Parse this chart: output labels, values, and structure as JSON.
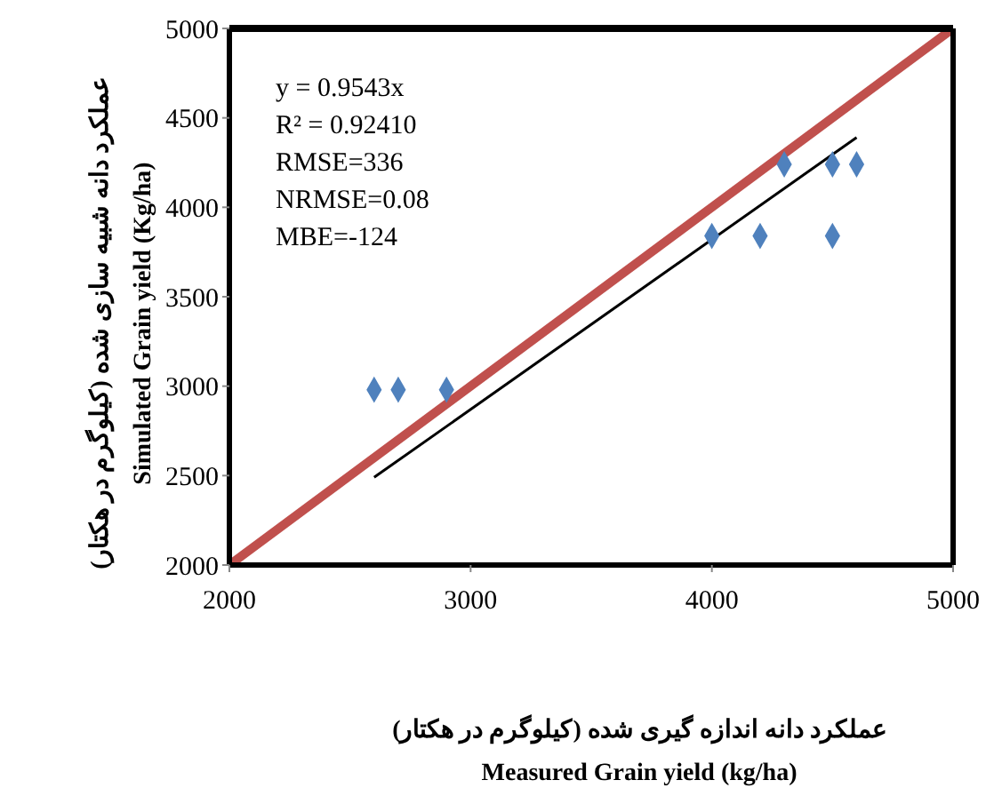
{
  "chart_data": {
    "type": "scatter",
    "xlabel": "عملکرد دانه  اندازه گیری شده (کیلوگرم در هکتار)\nMeasured Grain yield (kg/ha)",
    "ylabel": "عملکرد دانه شبیه سازی شده (کیلوگرم در هکتار)\nSimulated Grain  yield  (Kg/ha)",
    "annotations": [
      "y = 0.9543x",
      "R² = 0.92410",
      "RMSE=336",
      "NRMSE=0.08",
      "MBE=-124"
    ],
    "series": [
      {
        "color": "#4f81bd",
        "marker": "diamond",
        "x": [
          2600,
          2700,
          2900,
          4000,
          4200,
          4500,
          4300,
          4500,
          4600
        ],
        "values": [
          2980,
          2980,
          2980,
          3840,
          3840,
          3840,
          4240,
          4240,
          4240
        ]
      },
      {
        "type": "line",
        "color": "#c0504d",
        "marker": "none",
        "x": [
          2000,
          5000
        ],
        "values": [
          2000,
          5000
        ]
      },
      {
        "type": "line",
        "color": "#000000",
        "marker": "none",
        "x": [
          2600,
          4600
        ],
        "values": [
          2490,
          4390
        ]
      }
    ],
    "xlim": [
      2000,
      5000
    ],
    "xticks": [
      2000,
      3000,
      4000,
      5000
    ],
    "ylim": [
      2000,
      5000
    ],
    "yticks": [
      2000,
      2500,
      3000,
      3500,
      4000,
      4500,
      5000
    ]
  }
}
